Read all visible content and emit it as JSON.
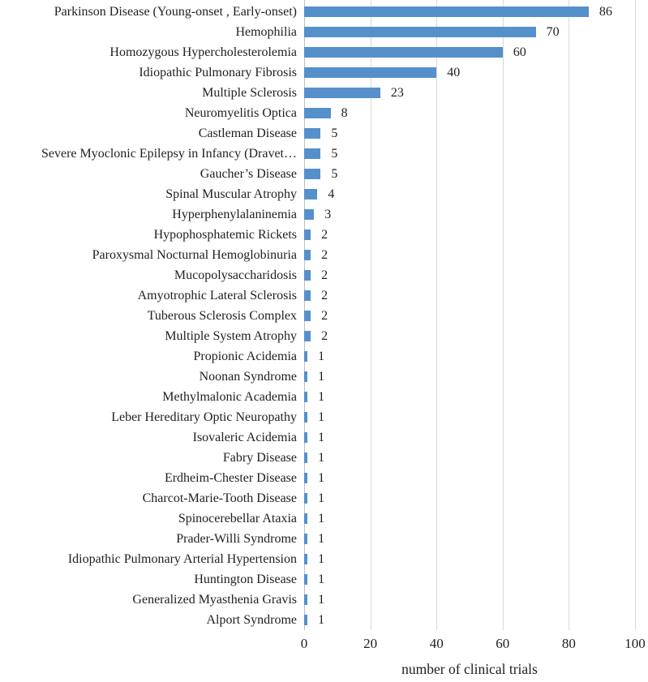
{
  "chart_data": {
    "type": "bar",
    "orientation": "horizontal",
    "title": "",
    "xlabel": "number of clinical trials",
    "ylabel": "",
    "xlim": [
      0,
      100
    ],
    "xticks": [
      "0",
      "20",
      "40",
      "60",
      "80",
      "100"
    ],
    "grid": "vertical gridlines at each x tick, no outer border",
    "legend": "none",
    "bar_color": "#5590CB",
    "gridline_color": "#D9D9D9",
    "axis_line_color": "#BFBFBF",
    "text_color": "#1f1f1f",
    "categories": [
      "Parkinson Disease (Young-onset , Early-onset)",
      "Hemophilia",
      "Homozygous Hypercholesterolemia",
      "Idiopathic Pulmonary Fibrosis",
      "Multiple Sclerosis",
      "Neuromyelitis Optica",
      "Castleman Disease",
      "Severe Myoclonic Epilepsy in Infancy (Dravet…",
      "Gaucher’s Disease",
      "Spinal Muscular Atrophy",
      "Hyperphenylalaninemia",
      "Hypophosphatemic Rickets",
      "Paroxysmal Nocturnal Hemoglobinuria",
      "Mucopolysaccharidosis",
      "Amyotrophic Lateral Sclerosis",
      "Tuberous Sclerosis Complex",
      "Multiple System Atrophy",
      "Propionic Acidemia",
      "Noonan Syndrome",
      "Methylmalonic Academia",
      "Leber Hereditary Optic Neuropathy",
      "Isovaleric Acidemia",
      "Fabry Disease",
      "Erdheim-Chester Disease",
      "Charcot-Marie-Tooth Disease",
      "Spinocerebellar Ataxia",
      "Prader-Willi Syndrome",
      "Idiopathic Pulmonary Arterial Hypertension",
      "Huntington Disease",
      "Generalized Myasthenia Gravis",
      "Alport Syndrome"
    ],
    "values": [
      86,
      70,
      60,
      40,
      23,
      8,
      5,
      5,
      5,
      4,
      3,
      2,
      2,
      2,
      2,
      2,
      2,
      1,
      1,
      1,
      1,
      1,
      1,
      1,
      1,
      1,
      1,
      1,
      1,
      1,
      1
    ]
  }
}
